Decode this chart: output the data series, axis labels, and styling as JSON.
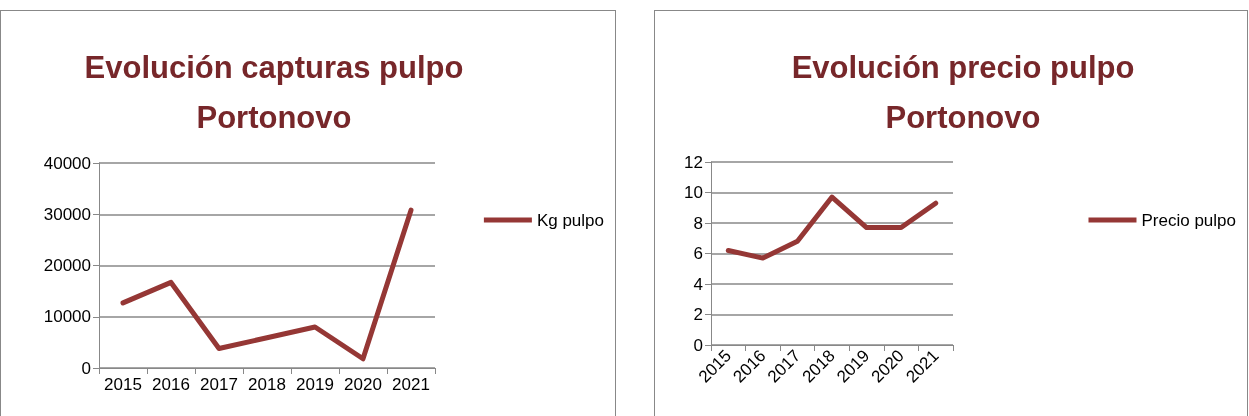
{
  "chart_data": [
    {
      "type": "line",
      "title": "Evolución capturas pulpo\nPortonovo",
      "categories": [
        "2015",
        "2016",
        "2017",
        "2018",
        "2019",
        "2020",
        "2021"
      ],
      "series": [
        {
          "name": "Kg pulpo",
          "color": "#953735",
          "values": [
            12700,
            16700,
            3800,
            5900,
            8000,
            1800,
            30800
          ]
        }
      ],
      "ylim": [
        0,
        40000
      ],
      "yticks": [
        0,
        10000,
        20000,
        30000,
        40000
      ],
      "grid": "y",
      "legend": "right",
      "marker": "none",
      "line_style": "solid"
    },
    {
      "type": "line",
      "title": "Evolución precio pulpo\nPortonovo",
      "categories": [
        "2015",
        "2016",
        "2017",
        "2018",
        "2019",
        "2020",
        "2021"
      ],
      "series": [
        {
          "name": "Precio pulpo",
          "color": "#953735",
          "values": [
            6.2,
            5.7,
            6.8,
            9.7,
            7.7,
            7.7,
            9.3
          ]
        }
      ],
      "ylim": [
        0,
        12
      ],
      "yticks": [
        0,
        2,
        4,
        6,
        8,
        10,
        12
      ],
      "grid": "y",
      "legend": "right",
      "marker": "none",
      "line_style": "solid"
    }
  ]
}
